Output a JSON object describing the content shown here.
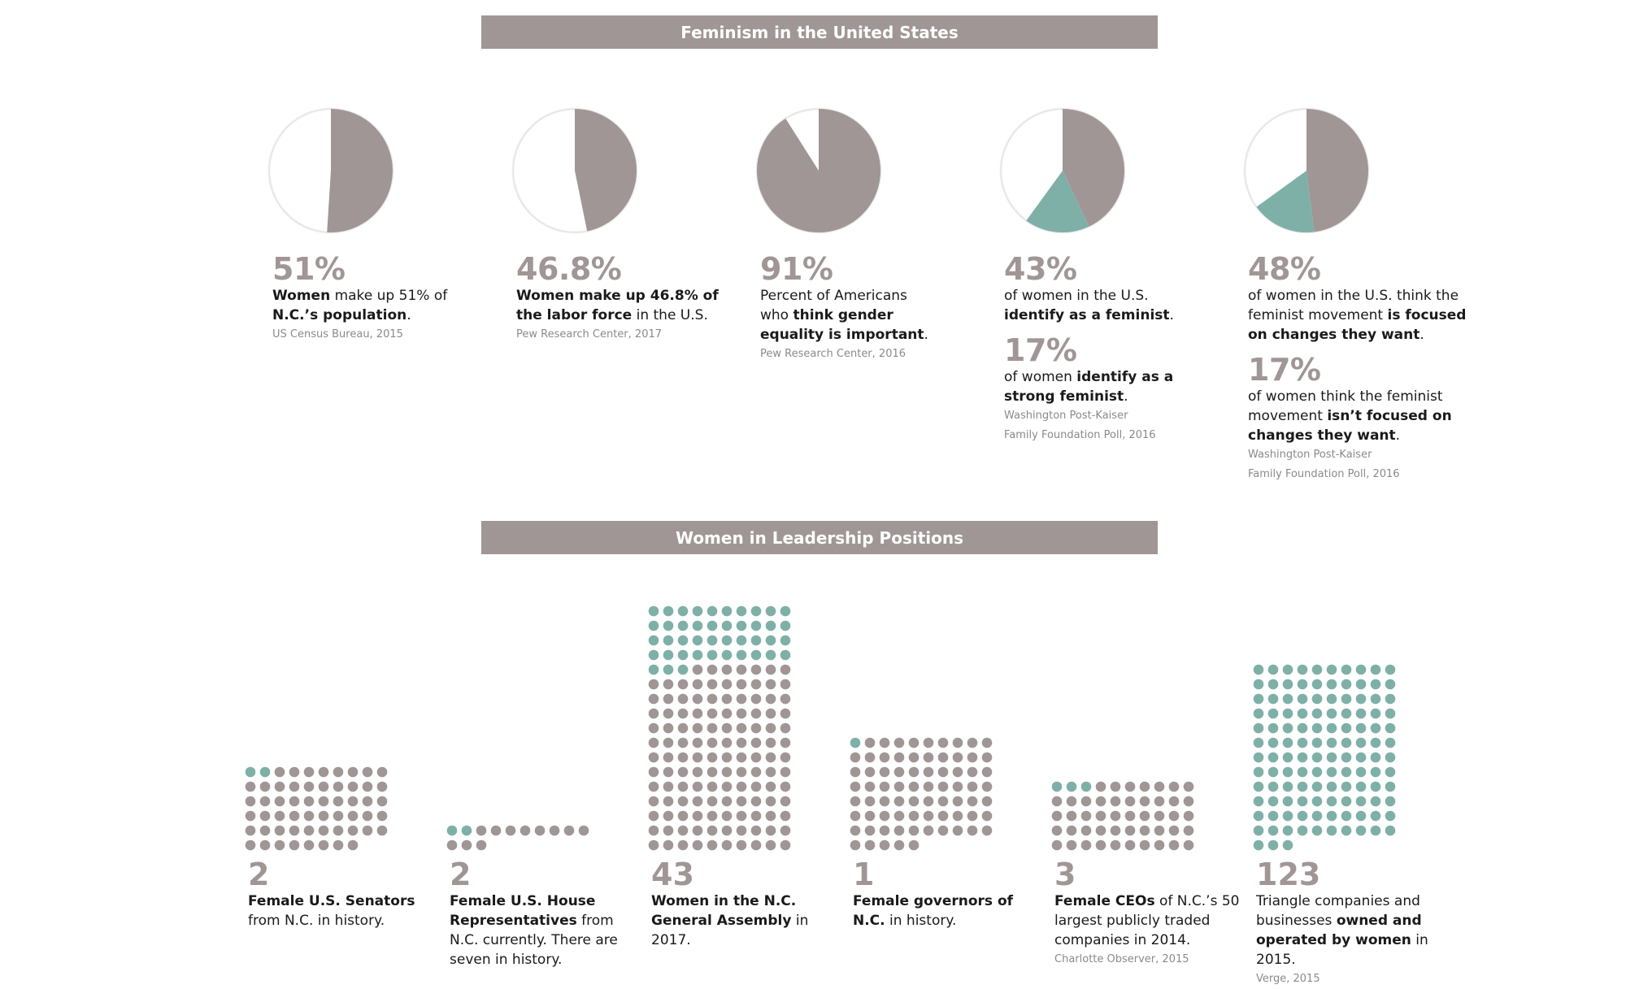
{
  "colors": {
    "grey": "#a09696",
    "teal": "#7fb0a8",
    "banner": "#a09696"
  },
  "section1": {
    "title": "Feminism in the United States"
  },
  "section2": {
    "title": "Women in Leadership Positions"
  },
  "chart_data": [
    {
      "type": "pie",
      "slices": [
        {
          "label": "Women",
          "value": 51,
          "color": "#a09696"
        },
        {
          "label": "",
          "value": 49,
          "color": "#ffffff"
        }
      ],
      "stat_text": "51%",
      "desc_bold1": "Women",
      "desc_text1": " make up 51% of ",
      "desc_bold2": "N.C.’s population",
      "desc_text2": ".",
      "source": "US Census Bureau, 2015"
    },
    {
      "type": "pie",
      "slices": [
        {
          "label": "Women in labor force",
          "value": 46.8,
          "color": "#a09696"
        },
        {
          "label": "",
          "value": 53.2,
          "color": "#ffffff"
        }
      ],
      "stat_text": "46.8%",
      "desc_bold1": "Women make up 46.8% of the labor force",
      "desc_text1": " in the U.S.",
      "source": "Pew Research Center, 2017"
    },
    {
      "type": "pie",
      "slices": [
        {
          "label": "Think gender equality is important",
          "value": 91,
          "color": "#a09696"
        },
        {
          "label": "",
          "value": 9,
          "color": "#ffffff"
        }
      ],
      "stat_text": "91%",
      "desc_text1": "Percent of Americans who ",
      "desc_bold1": "think gender equality is important",
      "desc_text2": ".",
      "source": "Pew Research Center, 2016"
    },
    {
      "type": "pie",
      "slices": [
        {
          "label": "Identify as a feminist",
          "value": 43,
          "color": "#a09696"
        },
        {
          "label": "Strong feminist",
          "value": 17,
          "color": "#7fb0a8"
        },
        {
          "label": "",
          "value": 40,
          "color": "#ffffff"
        }
      ],
      "stat_text": "43%",
      "desc_text1": "of women in the U.S. ",
      "desc_bold1": "identify as a feminist",
      "desc_text2": ".",
      "stat2_text": "17%",
      "desc2_text1": "of women ",
      "desc2_bold1": "identify as a strong feminist",
      "desc2_text2": ".",
      "source_line1": "Washington Post-Kaiser",
      "source_line2": "Family Foundation Poll, 2016"
    },
    {
      "type": "pie",
      "slices": [
        {
          "label": "Focused on changes they want",
          "value": 48,
          "color": "#a09696"
        },
        {
          "label": "Isn't focused",
          "value": 17,
          "color": "#7fb0a8"
        },
        {
          "label": "",
          "value": 35,
          "color": "#ffffff"
        }
      ],
      "stat_text": "48%",
      "desc_text1": "of women in the U.S. think the feminist movement ",
      "desc_bold1": "is focused on changes they want",
      "desc_text2": ".",
      "stat2_text": "17%",
      "desc2_text1": "of women think the feminist movement ",
      "desc2_bold1": "isn’t focused on changes they want",
      "desc2_text2": ".",
      "source_line1": "Washington Post-Kaiser",
      "source_line2": "Family Foundation Poll, 2016"
    },
    {
      "type": "dot-matrix",
      "highlighted": 2,
      "total": 58,
      "count_text": "2",
      "desc_bold1": "Female U.S. Senators",
      "desc_text1": " from N.C. in history."
    },
    {
      "type": "dot-matrix",
      "highlighted": 2,
      "total": 13,
      "count_text": "2",
      "desc_bold1": "Female U.S. House Representatives",
      "desc_text1": " from N.C. currently. There are seven in history."
    },
    {
      "type": "dot-matrix",
      "highlighted": 43,
      "total": 170,
      "count_text": "43",
      "desc_bold1": "Women in the N.C. General Assembly",
      "desc_text1": " in 2017."
    },
    {
      "type": "dot-matrix",
      "highlighted": 1,
      "total": 75,
      "count_text": "1",
      "desc_bold1": "Female governors of N.C.",
      "desc_text1": " in history."
    },
    {
      "type": "dot-matrix",
      "highlighted": 3,
      "total": 50,
      "count_text": "3",
      "desc_bold1": "Female CEOs",
      "desc_text1": " of N.C.’s 50 largest publicly traded companies in 2014.",
      "source": "Charlotte Observer, 2015"
    },
    {
      "type": "dot-matrix",
      "highlighted": 123,
      "total": 123,
      "count_text": "123",
      "desc_text1": "Triangle companies and businesses ",
      "desc_bold1": "owned and operated by women",
      "desc_text2": " in 2015.",
      "source": "Verge, 2015"
    }
  ]
}
